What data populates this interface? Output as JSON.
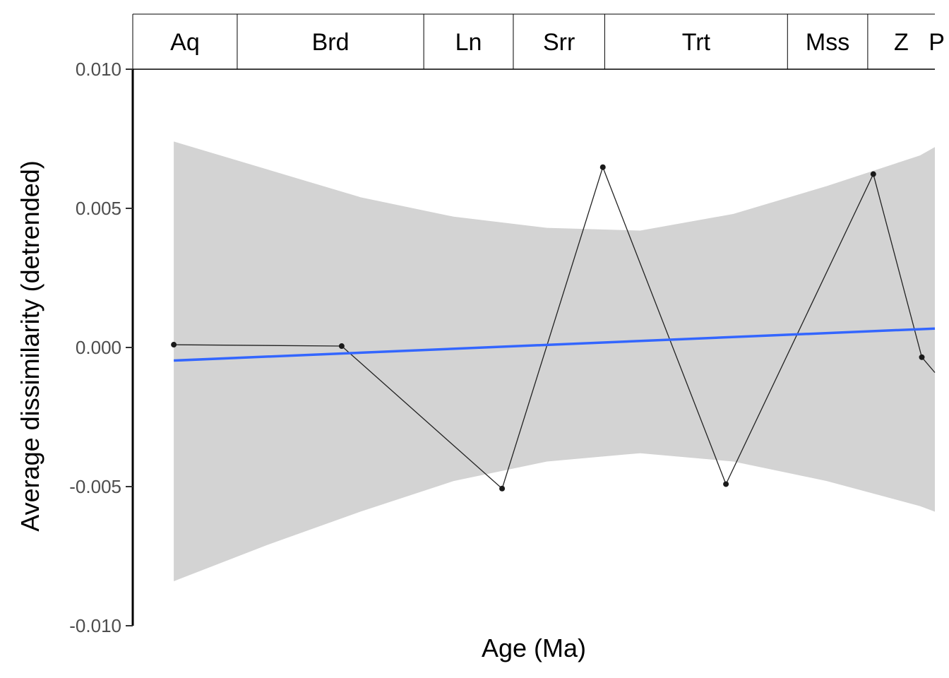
{
  "chart_data": {
    "type": "line",
    "title": "",
    "xlabel": "Age (Ma)",
    "ylabel": "Average dissimilarity (detrended)",
    "ylim": [
      -0.01,
      0.01
    ],
    "yticks": [
      -0.01,
      -0.005,
      0.0,
      0.005,
      0.01
    ],
    "ytick_labels": [
      "-0.010",
      "-0.005",
      "0.000",
      "0.005",
      "0.010"
    ],
    "xlim": [
      24.0,
      2.5
    ],
    "x_reversed": true,
    "x_tick_labels_shown": false,
    "grid": false,
    "stages": [
      {
        "label": "Aq",
        "start": 24.0,
        "end": 21.2
      },
      {
        "label": "Brd",
        "start": 21.2,
        "end": 16.2
      },
      {
        "label": "Ln",
        "start": 16.2,
        "end": 13.8
      },
      {
        "label": "Srr",
        "start": 13.8,
        "end": 11.35
      },
      {
        "label": "Trt",
        "start": 11.35,
        "end": 6.45
      },
      {
        "label": "Mss",
        "start": 6.45,
        "end": 4.3
      },
      {
        "label": "Z",
        "start": 4.3,
        "end": 2.4
      },
      {
        "label": "P",
        "start": 2.4,
        "end": 1.8
      }
    ],
    "series": [
      {
        "x": [
          22.9,
          18.4,
          14.1,
          11.4,
          8.1,
          4.15,
          2.85,
          2.5
        ],
        "values": [
          0.0001,
          5e-05,
          -0.00507,
          0.00648,
          -0.00491,
          0.00623,
          -0.00035,
          -0.0009
        ],
        "color": "#000000"
      }
    ],
    "trend": {
      "type": "linear fit",
      "color": "#3366FF",
      "x": [
        22.9,
        2.5
      ],
      "values": [
        -0.00047,
        0.00068
      ],
      "ci_color": "#D3D3D3",
      "ci_x": [
        22.9,
        20.4,
        17.9,
        15.4,
        12.9,
        10.4,
        7.9,
        5.4,
        2.9,
        2.5
      ],
      "ci_upper": [
        0.0074,
        0.0064,
        0.0054,
        0.0047,
        0.0043,
        0.0042,
        0.0048,
        0.0058,
        0.0069,
        0.0072
      ],
      "ci_lower": [
        -0.0084,
        -0.0071,
        -0.0059,
        -0.0048,
        -0.0041,
        -0.0038,
        -0.0041,
        -0.0048,
        -0.0057,
        -0.0059
      ]
    }
  }
}
